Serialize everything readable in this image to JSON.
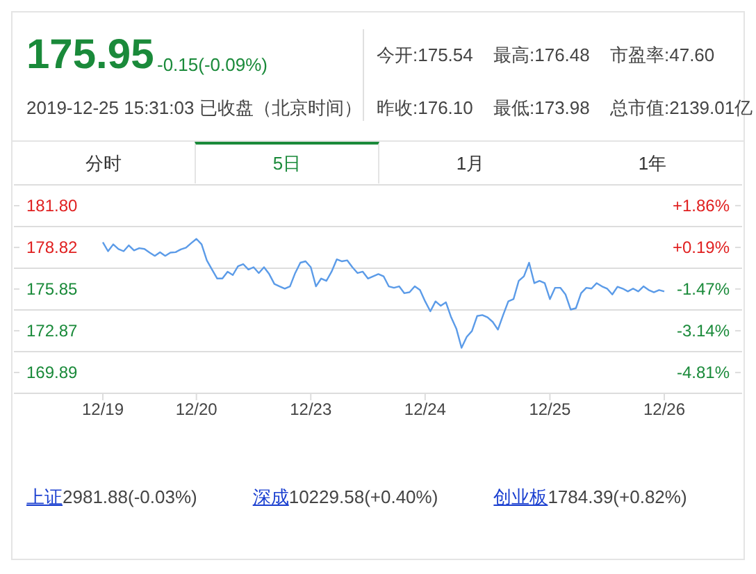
{
  "chart_data": {
    "type": "line",
    "annotations": [
      "175.95",
      "-0.15(-0.09%)",
      "2019-12-25 15:31:03 已收盘（北京时间）",
      "今开:175.54",
      "最高:176.48",
      "市盈率:47.60",
      "昨收:176.10",
      "最低:173.98",
      "总市值:2139.01亿",
      "分时",
      "5日",
      "1月",
      "1年",
      "上证",
      "2981.88(-0.03%)",
      "深成",
      "10229.58(+0.40%)",
      "创业板",
      "1784.39(+0.82%)"
    ],
    "categories": [
      "12/19",
      null,
      null,
      null,
      null,
      null,
      null,
      null,
      null,
      null,
      null,
      null,
      null,
      null,
      null,
      null,
      null,
      null,
      "12/20",
      null,
      null,
      null,
      null,
      null,
      null,
      null,
      null,
      null,
      null,
      null,
      null,
      null,
      null,
      null,
      null,
      null,
      null,
      null,
      null,
      null,
      "12/23",
      null,
      null,
      null,
      null,
      null,
      null,
      null,
      null,
      null,
      null,
      null,
      null,
      null,
      null,
      null,
      null,
      null,
      null,
      null,
      null,
      null,
      "12/24",
      null,
      null,
      null,
      null,
      null,
      null,
      null,
      null,
      null,
      null,
      null,
      null,
      null,
      null,
      null,
      null,
      null,
      null,
      null,
      null,
      null,
      null,
      null,
      "12/25",
      null,
      null,
      null,
      null,
      null,
      null,
      null,
      null,
      null,
      null,
      null,
      null,
      null,
      null,
      null,
      null,
      null,
      null,
      null,
      null,
      null,
      "12/26"
    ],
    "ylim": [
      168.4,
      183.29
    ],
    "yticks": [
      {
        "value": 183.29,
        "label": null
      },
      {
        "value": 180.31,
        "label": null
      },
      {
        "value": 181.8,
        "label": "181.80"
      },
      {
        "value": 178.82,
        "label": "178.82"
      },
      {
        "value": 177.335,
        "label": null
      },
      {
        "value": 175.85,
        "label": "175.85"
      },
      {
        "value": 174.36,
        "label": null
      },
      {
        "value": 172.87,
        "label": "172.87"
      },
      {
        "value": 171.38,
        "label": null
      },
      {
        "value": 169.89,
        "label": "169.89"
      }
    ],
    "y2lim": [
      -5.64,
      2.69
    ],
    "y2ticks": [
      {
        "value": 2.69,
        "label": null
      },
      {
        "value": 1.86,
        "label": "+1.86%"
      },
      {
        "value": 0.19,
        "label": "+0.19%"
      },
      {
        "value": -1.47,
        "label": "-1.47%"
      },
      {
        "value": -3.14,
        "label": "-3.14%"
      },
      {
        "value": -4.81,
        "label": "-4.81%"
      }
    ],
    "grid": "y",
    "marker": "none",
    "line_style": "solid",
    "series": [
      {
        "color": "#5b9be8",
        "values": [
          179.19,
          178.55,
          179.04,
          178.71,
          178.55,
          178.97,
          178.61,
          178.77,
          178.71,
          178.45,
          178.22,
          178.48,
          178.22,
          178.45,
          178.48,
          178.68,
          178.8,
          179.13,
          179.43,
          179.04,
          177.9,
          177.24,
          176.6,
          176.6,
          177.09,
          176.85,
          177.48,
          177.63,
          177.24,
          177.41,
          176.99,
          177.41,
          176.92,
          176.21,
          176.04,
          175.88,
          176.04,
          176.99,
          177.73,
          177.83,
          177.41,
          176.04,
          176.6,
          176.43,
          177.09,
          177.97,
          177.83,
          177.9,
          177.41,
          176.99,
          177.09,
          176.6,
          176.76,
          176.92,
          176.76,
          176.04,
          175.94,
          176.04,
          175.55,
          175.62,
          176.04,
          175.78,
          174.97,
          174.26,
          174.97,
          174.65,
          174.9,
          173.83,
          173.02,
          171.65,
          172.43,
          172.85,
          173.92,
          173.99,
          173.83,
          173.5,
          172.95,
          173.99,
          174.97,
          175.13,
          176.43,
          176.76,
          177.73,
          176.27,
          176.43,
          176.27,
          175.13,
          175.94,
          175.94,
          175.46,
          174.38,
          174.48,
          175.55,
          175.94,
          175.88,
          176.27,
          176.04,
          175.88,
          175.46,
          176.01,
          175.88,
          175.68,
          175.88,
          175.68,
          176.04,
          175.78,
          175.62,
          175.78,
          175.68
        ]
      }
    ]
  }
}
